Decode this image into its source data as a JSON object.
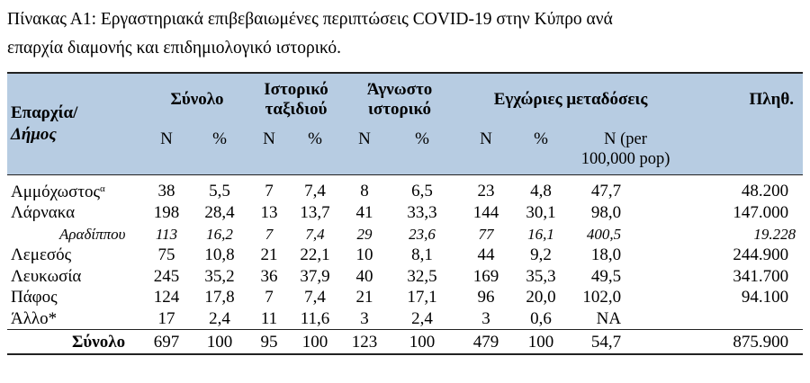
{
  "caption": {
    "line1": "Πίνακας Α1: Εργαστηριακά επιβεβαιωμένες περιπτώσεις COVID-19 στην Κύπρο ανά",
    "line2": "επαρχία διαμονής και επιδημιολογικό ιστορικό."
  },
  "header": {
    "region_line1": "Επαρχία/",
    "region_line2": "Δήμος",
    "total": "Σύνολο",
    "travel_line1": "Ιστορικό",
    "travel_line2": "ταξιδιού",
    "unknown_line1": "Άγνωστο",
    "unknown_line2": "ιστορικό",
    "local": "Εγχώριες μεταδόσεις",
    "population": "Πληθ.",
    "n": "N",
    "pct": "%",
    "per100_line1": "N (per",
    "per100_line2": "100,000 pop)"
  },
  "rows": [
    {
      "name": "Αμμόχωστος",
      "sup": "α",
      "total_n": "38",
      "total_pct": "5,5",
      "travel_n": "7",
      "travel_pct": "7,4",
      "unknown_n": "8",
      "unknown_pct": "6,5",
      "local_n": "23",
      "local_pct": "4,8",
      "per100k": "47,7",
      "pop": "48.200"
    },
    {
      "name": "Λάρνακα",
      "sup": "",
      "total_n": "198",
      "total_pct": "28,4",
      "travel_n": "13",
      "travel_pct": "13,7",
      "unknown_n": "41",
      "unknown_pct": "33,3",
      "local_n": "144",
      "local_pct": "30,1",
      "per100k": "98,0",
      "pop": "147.000"
    },
    {
      "name": "Αραδίππου",
      "sup": "",
      "total_n": "113",
      "total_pct": "16,2",
      "travel_n": "7",
      "travel_pct": "7,4",
      "unknown_n": "29",
      "unknown_pct": "23,6",
      "local_n": "77",
      "local_pct": "16,1",
      "per100k": "400,5",
      "pop": "19.228"
    },
    {
      "name": "Λεμεσός",
      "sup": "",
      "total_n": "75",
      "total_pct": "10,8",
      "travel_n": "21",
      "travel_pct": "22,1",
      "unknown_n": "10",
      "unknown_pct": "8,1",
      "local_n": "44",
      "local_pct": "9,2",
      "per100k": "18,0",
      "pop": "244.900"
    },
    {
      "name": "Λευκωσία",
      "sup": "",
      "total_n": "245",
      "total_pct": "35,2",
      "travel_n": "36",
      "travel_pct": "37,9",
      "unknown_n": "40",
      "unknown_pct": "32,5",
      "local_n": "169",
      "local_pct": "35,3",
      "per100k": "49,5",
      "pop": "341.700"
    },
    {
      "name": "Πάφος",
      "sup": "",
      "total_n": "124",
      "total_pct": "17,8",
      "travel_n": "7",
      "travel_pct": "7,4",
      "unknown_n": "21",
      "unknown_pct": "17,1",
      "local_n": "96",
      "local_pct": "20,0",
      "per100k": "102,0",
      "pop": "94.100"
    },
    {
      "name": "Άλλο*",
      "sup": "",
      "total_n": "17",
      "total_pct": "2,4",
      "travel_n": "11",
      "travel_pct": "11,6",
      "unknown_n": "3",
      "unknown_pct": "2,4",
      "local_n": "3",
      "local_pct": "0,6",
      "per100k": "NA",
      "pop": ""
    }
  ],
  "total_row": {
    "name": "Σύνολο",
    "total_n": "697",
    "total_pct": "100",
    "travel_n": "95",
    "travel_pct": "100",
    "unknown_n": "123",
    "unknown_pct": "100",
    "local_n": "479",
    "local_pct": "100",
    "per100k": "54,7",
    "pop": "875.900"
  }
}
